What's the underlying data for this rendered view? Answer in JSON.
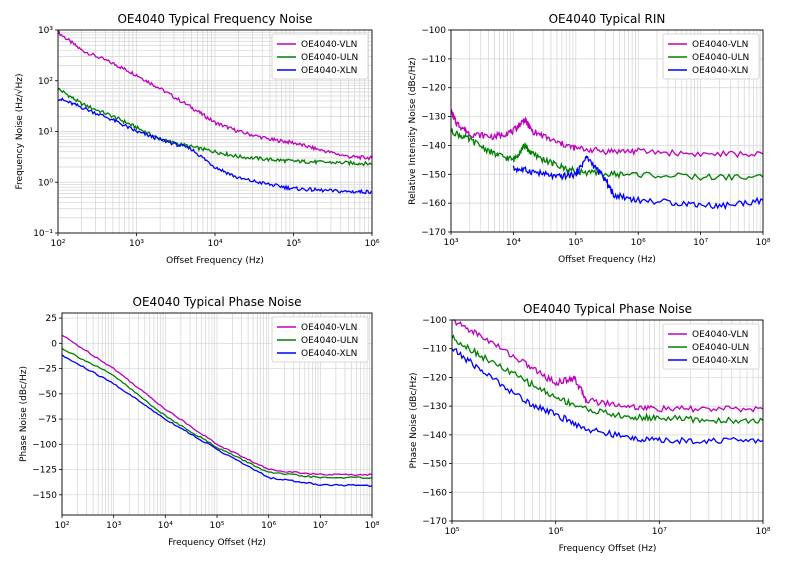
{
  "chart_data": [
    {
      "type": "line",
      "title": "OE4040 Typical Frequency Noise",
      "xlabel": "Offset Frequency (Hz)",
      "ylabel": "Frequency Noise (Hz/√Hz)",
      "xscale": "log",
      "yscale": "log",
      "xlim": [
        100,
        1000000
      ],
      "ylim": [
        0.1,
        1000
      ],
      "xticks": [
        "10²",
        "10³",
        "10⁴",
        "10⁵",
        "10⁶"
      ],
      "yticks": [
        "10⁻¹",
        "10⁰",
        "10¹",
        "10²",
        "10³"
      ],
      "grid": "major and minor",
      "legend_position": "top-right",
      "series": [
        {
          "name": "OE4040-VLN",
          "color": "#bf00bf",
          "x": [
            100,
            200,
            500,
            1000,
            2000,
            5000,
            10000,
            20000,
            50000,
            100000,
            200000,
            500000,
            1000000
          ],
          "y": [
            900,
            400,
            220,
            130,
            70,
            30,
            15,
            10,
            7,
            6,
            4.5,
            3.2,
            3
          ]
        },
        {
          "name": "OE4040-ULN",
          "color": "#008000",
          "x": [
            100,
            200,
            500,
            1000,
            2000,
            5000,
            10000,
            20000,
            50000,
            100000,
            200000,
            500000,
            1000000
          ],
          "y": [
            70,
            35,
            20,
            12,
            7,
            5,
            4,
            3.2,
            2.8,
            2.6,
            2.5,
            2.4,
            2.3
          ]
        },
        {
          "name": "OE4040-XLN",
          "color": "#0000ff",
          "x": [
            100,
            200,
            500,
            1000,
            2000,
            5000,
            10000,
            20000,
            50000,
            100000,
            200000,
            500000,
            1000000
          ],
          "y": [
            45,
            30,
            17,
            10,
            7,
            4.5,
            2,
            1.2,
            0.9,
            0.75,
            0.7,
            0.65,
            0.65
          ]
        }
      ]
    },
    {
      "type": "line",
      "title": "OE4040 Typical RIN",
      "xlabel": "Offset Frequency (Hz)",
      "ylabel": "Relative Intensity Noise (dBc/Hz)",
      "xscale": "log",
      "xlim": [
        1000,
        100000000
      ],
      "ylim": [
        -170,
        -100
      ],
      "xticks": [
        "10³",
        "10⁴",
        "10⁵",
        "10⁶",
        "10⁷",
        "10⁸"
      ],
      "yticks": [
        "−170",
        "−160",
        "−150",
        "−140",
        "−130",
        "−120",
        "−110",
        "−100"
      ],
      "grid": "major and minor",
      "legend_position": "top-right",
      "series": [
        {
          "name": "OE4040-VLN",
          "color": "#bf00bf",
          "x": [
            1000,
            1200,
            2000,
            5000,
            10000,
            15000,
            20000,
            50000,
            100000,
            300000,
            1000000,
            10000000,
            100000000
          ],
          "y": [
            -128,
            -132,
            -136,
            -137,
            -135,
            -131,
            -135,
            -139,
            -141,
            -142,
            -142,
            -143,
            -143
          ]
        },
        {
          "name": "OE4040-ULN",
          "color": "#008000",
          "x": [
            1000,
            2000,
            5000,
            10000,
            15000,
            20000,
            50000,
            100000,
            300000,
            1000000,
            10000000,
            100000000
          ],
          "y": [
            -135,
            -138,
            -143,
            -145,
            -140,
            -143,
            -147,
            -149,
            -150,
            -150,
            -151,
            -151
          ]
        },
        {
          "name": "OE4040-XLN",
          "color": "#0000ff",
          "x": [
            10000,
            20000,
            50000,
            100000,
            150000,
            300000,
            400000,
            1000000,
            5000000,
            20000000,
            100000000
          ],
          "y": [
            -148,
            -149,
            -151,
            -150,
            -144,
            -152,
            -157,
            -159,
            -160,
            -161,
            -159
          ]
        }
      ]
    },
    {
      "type": "line",
      "title": "OE4040 Typical Phase Noise",
      "xlabel": "Frequency Offset (Hz)",
      "ylabel": "Phase Noise (dBc/Hz)",
      "xscale": "log",
      "xlim": [
        100,
        100000000
      ],
      "ylim": [
        -170,
        30
      ],
      "xticks": [
        "10²",
        "10³",
        "10⁴",
        "10⁵",
        "10⁶",
        "10⁷",
        "10⁸"
      ],
      "yticks": [
        "−150",
        "−125",
        "−100",
        "−75",
        "−50",
        "−25",
        "0",
        "25"
      ],
      "grid": "major and minor",
      "legend_position": "top-right",
      "series": [
        {
          "name": "OE4040-VLN",
          "color": "#bf00bf",
          "x": [
            100,
            1000,
            10000,
            100000,
            1000000,
            10000000,
            100000000
          ],
          "y": [
            8,
            -25,
            -65,
            -100,
            -125,
            -130,
            -130
          ]
        },
        {
          "name": "OE4040-ULN",
          "color": "#008000",
          "x": [
            100,
            1000,
            10000,
            100000,
            1000000,
            10000000,
            100000000
          ],
          "y": [
            -5,
            -32,
            -72,
            -103,
            -128,
            -133,
            -133
          ]
        },
        {
          "name": "OE4040-XLN",
          "color": "#0000ff",
          "x": [
            100,
            1000,
            10000,
            100000,
            1000000,
            10000000,
            100000000
          ],
          "y": [
            -12,
            -40,
            -75,
            -105,
            -133,
            -140,
            -141
          ]
        }
      ]
    },
    {
      "type": "line",
      "title": "OE4040 Typical Phase Noise",
      "xlabel": "Frequency Offset (Hz)",
      "ylabel": "Phase Noise (dBc/Hz)",
      "xscale": "log",
      "xlim": [
        100000,
        100000000
      ],
      "ylim": [
        -170,
        -100
      ],
      "xticks": [
        "10⁵",
        "10⁶",
        "10⁷",
        "10⁸"
      ],
      "yticks": [
        "−170",
        "−160",
        "−150",
        "−140",
        "−130",
        "−120",
        "−110",
        "−100"
      ],
      "grid": "major and minor",
      "legend_position": "top-right",
      "series": [
        {
          "name": "OE4040-VLN",
          "color": "#bf00bf",
          "x": [
            100000,
            200000,
            500000,
            1000000,
            1500000,
            2000000,
            5000000,
            10000000,
            30000000,
            100000000
          ],
          "y": [
            -100,
            -106,
            -115,
            -122,
            -120,
            -128,
            -130,
            -131,
            -131,
            -131
          ]
        },
        {
          "name": "OE4040-ULN",
          "color": "#008000",
          "x": [
            100000,
            200000,
            500000,
            1000000,
            2000000,
            5000000,
            10000000,
            30000000,
            100000000
          ],
          "y": [
            -106,
            -113,
            -121,
            -127,
            -131,
            -134,
            -134,
            -135,
            -135
          ]
        },
        {
          "name": "OE4040-XLN",
          "color": "#0000ff",
          "x": [
            100000,
            200000,
            500000,
            1000000,
            2000000,
            5000000,
            10000000,
            30000000,
            100000000
          ],
          "y": [
            -110,
            -118,
            -128,
            -133,
            -138,
            -141,
            -142,
            -142,
            -142
          ]
        }
      ]
    }
  ]
}
